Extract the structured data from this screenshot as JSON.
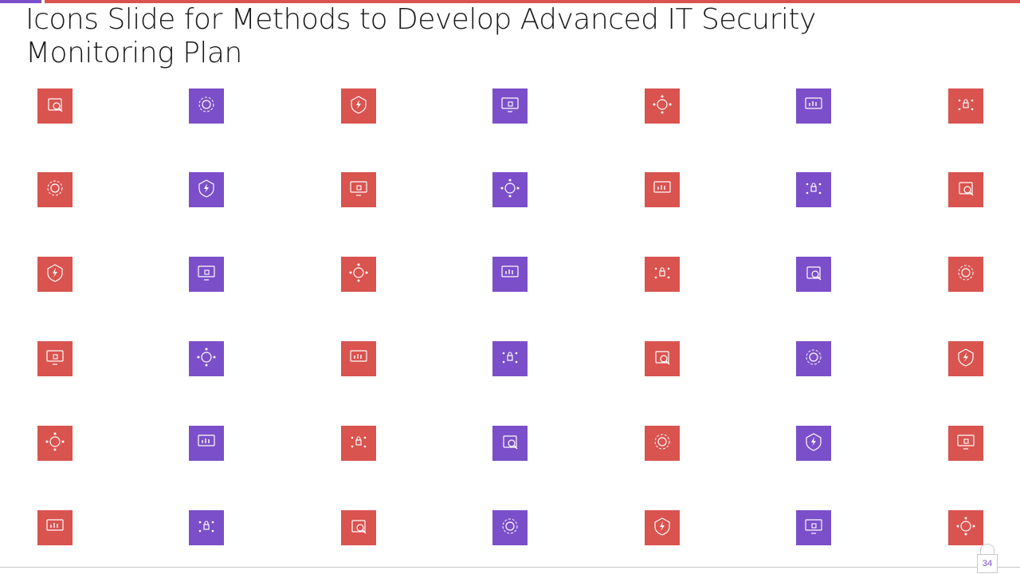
{
  "slide": {
    "title_line1": "Icons Slide for Methods to Develop Advanced IT Security",
    "title_line2": "Monitoring Plan",
    "page_number": "34"
  },
  "colors": {
    "red": "#D9534F",
    "purple": "#7B4FC9"
  },
  "icon_rows": [
    [
      "web-analytics-search-icon",
      "gear-cycle-icon",
      "lightning-shield-icon",
      "monitor-lock-icon",
      "network-lock-icon",
      "monitor-bar-chart-icon",
      "lock-network-icon"
    ],
    [
      "computer-desk-icon",
      "browser-shield-icon",
      "document-list-icon",
      "shield-monitor-icon",
      "shield-card-icon",
      "bug-circuit-icon",
      "globe-monitor-icon"
    ],
    [
      "laptop-shield-icon",
      "monitor-cloud-lock-icon",
      "calculator-dollar-icon",
      "network-lock-hub-icon",
      "document-shield-icon",
      "monitor-shield-icon",
      "globe-lock-icon"
    ],
    [
      "circuit-lock-icon",
      "computer-lock-icon",
      "laptop-location-icon",
      "monitor-shield-small-icon",
      "chip-shield-icon",
      "database-lock-icon",
      "target-lock-icon"
    ],
    [
      "fingerprint-lock-icon",
      "email-search-icon",
      "team-road-icon",
      "cpu-chip-icon",
      "monitor-shield-gear-icon",
      "folder-lock-icon",
      "key-network-icon"
    ],
    [
      "server-grid-icon",
      "monitor-lock-devices-icon",
      "calculator-icon",
      "shield-gear-icon",
      "person-security-icon",
      "team-lock-icon",
      "magnifier-coin-icon"
    ]
  ]
}
